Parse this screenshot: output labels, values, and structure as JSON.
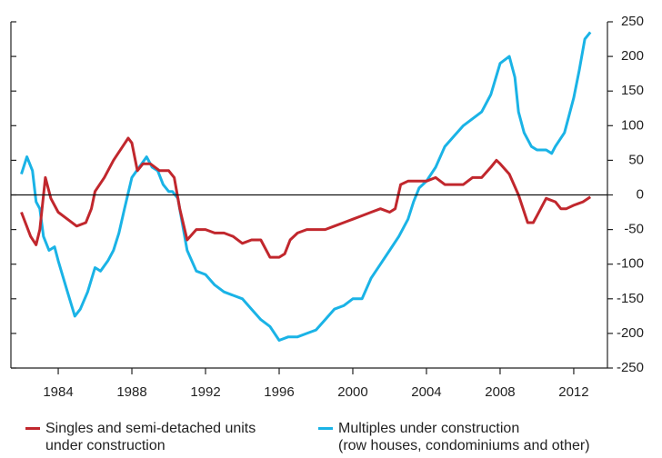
{
  "chart_data": {
    "type": "line",
    "xlim": [
      1981.43,
      2013.83
    ],
    "xticks": [
      1984,
      1988,
      1992,
      1996,
      2000,
      2004,
      2008,
      2012
    ],
    "ylim": [
      -250,
      250
    ],
    "yticks": [
      -250,
      -200,
      -150,
      -100,
      -50,
      0,
      50,
      100,
      150,
      200,
      250
    ],
    "y_axis_side": "right",
    "legend": "bottom",
    "series": [
      {
        "name": "Singles and semi-detached units\nunder construction",
        "color": "#c1272d",
        "x": [
          1982.0,
          1982.5,
          1982.8,
          1983.0,
          1983.3,
          1983.6,
          1984.0,
          1984.5,
          1985.0,
          1985.5,
          1985.8,
          1986.0,
          1986.5,
          1987.0,
          1987.5,
          1987.8,
          1988.0,
          1988.3,
          1988.6,
          1989.0,
          1989.5,
          1990.0,
          1990.3,
          1990.6,
          1991.0,
          1991.5,
          1992.0,
          1992.5,
          1993.0,
          1993.5,
          1994.0,
          1994.5,
          1995.0,
          1995.5,
          1996.0,
          1996.3,
          1996.6,
          1997.0,
          1997.5,
          1998.0,
          1998.5,
          1999.0,
          1999.5,
          2000.0,
          2000.5,
          2001.0,
          2001.5,
          2002.0,
          2002.3,
          2002.6,
          2003.0,
          2003.5,
          2004.0,
          2004.5,
          2005.0,
          2005.5,
          2006.0,
          2006.5,
          2007.0,
          2007.5,
          2007.8,
          2008.0,
          2008.5,
          2009.0,
          2009.5,
          2009.8,
          2010.0,
          2010.5,
          2011.0,
          2011.3,
          2011.6,
          2012.0,
          2012.5,
          2012.9
        ],
        "values": [
          -25,
          -60,
          -72,
          -50,
          25,
          -5,
          -25,
          -35,
          -45,
          -40,
          -20,
          5,
          25,
          50,
          70,
          82,
          75,
          35,
          45,
          45,
          35,
          35,
          25,
          -20,
          -65,
          -50,
          -50,
          -55,
          -55,
          -60,
          -70,
          -65,
          -65,
          -90,
          -90,
          -85,
          -65,
          -55,
          -50,
          -50,
          -50,
          -45,
          -40,
          -35,
          -30,
          -25,
          -20,
          -25,
          -20,
          15,
          20,
          20,
          20,
          25,
          15,
          15,
          15,
          25,
          25,
          40,
          50,
          45,
          30,
          0,
          -40,
          -40,
          -30,
          -5,
          -10,
          -20,
          -20,
          -15,
          -10,
          -3
        ]
      },
      {
        "name": "Multiples under construction\n(row houses, condominiums and other)",
        "color": "#1ab3e6",
        "x": [
          1982.0,
          1982.3,
          1982.6,
          1982.8,
          1983.0,
          1983.2,
          1983.5,
          1983.8,
          1984.0,
          1984.5,
          1984.9,
          1985.2,
          1985.6,
          1986.0,
          1986.3,
          1986.7,
          1987.0,
          1987.3,
          1987.6,
          1988.0,
          1988.4,
          1988.8,
          1989.1,
          1989.4,
          1989.7,
          1990.0,
          1990.2,
          1990.5,
          1991.0,
          1991.5,
          1992.0,
          1992.5,
          1993.0,
          1993.5,
          1994.0,
          1994.5,
          1995.0,
          1995.5,
          1996.0,
          1996.5,
          1997.0,
          1997.5,
          1998.0,
          1998.5,
          1999.0,
          1999.5,
          2000.0,
          2000.5,
          2001.0,
          2001.5,
          2002.0,
          2002.5,
          2003.0,
          2003.3,
          2003.6,
          2004.0,
          2004.5,
          2005.0,
          2005.5,
          2006.0,
          2006.5,
          2007.0,
          2007.5,
          2008.0,
          2008.5,
          2008.8,
          2009.0,
          2009.3,
          2009.7,
          2010.0,
          2010.5,
          2010.8,
          2011.0,
          2011.5,
          2012.0,
          2012.3,
          2012.6,
          2012.9
        ],
        "values": [
          30,
          55,
          35,
          -10,
          -20,
          -60,
          -80,
          -75,
          -95,
          -140,
          -175,
          -165,
          -140,
          -105,
          -110,
          -95,
          -80,
          -55,
          -20,
          25,
          40,
          55,
          40,
          35,
          15,
          5,
          5,
          -5,
          -80,
          -110,
          -115,
          -130,
          -140,
          -145,
          -150,
          -165,
          -180,
          -190,
          -210,
          -205,
          -205,
          -200,
          -195,
          -180,
          -165,
          -160,
          -150,
          -150,
          -120,
          -100,
          -80,
          -60,
          -35,
          -10,
          10,
          20,
          40,
          70,
          85,
          100,
          110,
          120,
          145,
          190,
          200,
          170,
          120,
          90,
          70,
          65,
          65,
          60,
          70,
          90,
          140,
          180,
          225,
          235
        ]
      }
    ]
  }
}
